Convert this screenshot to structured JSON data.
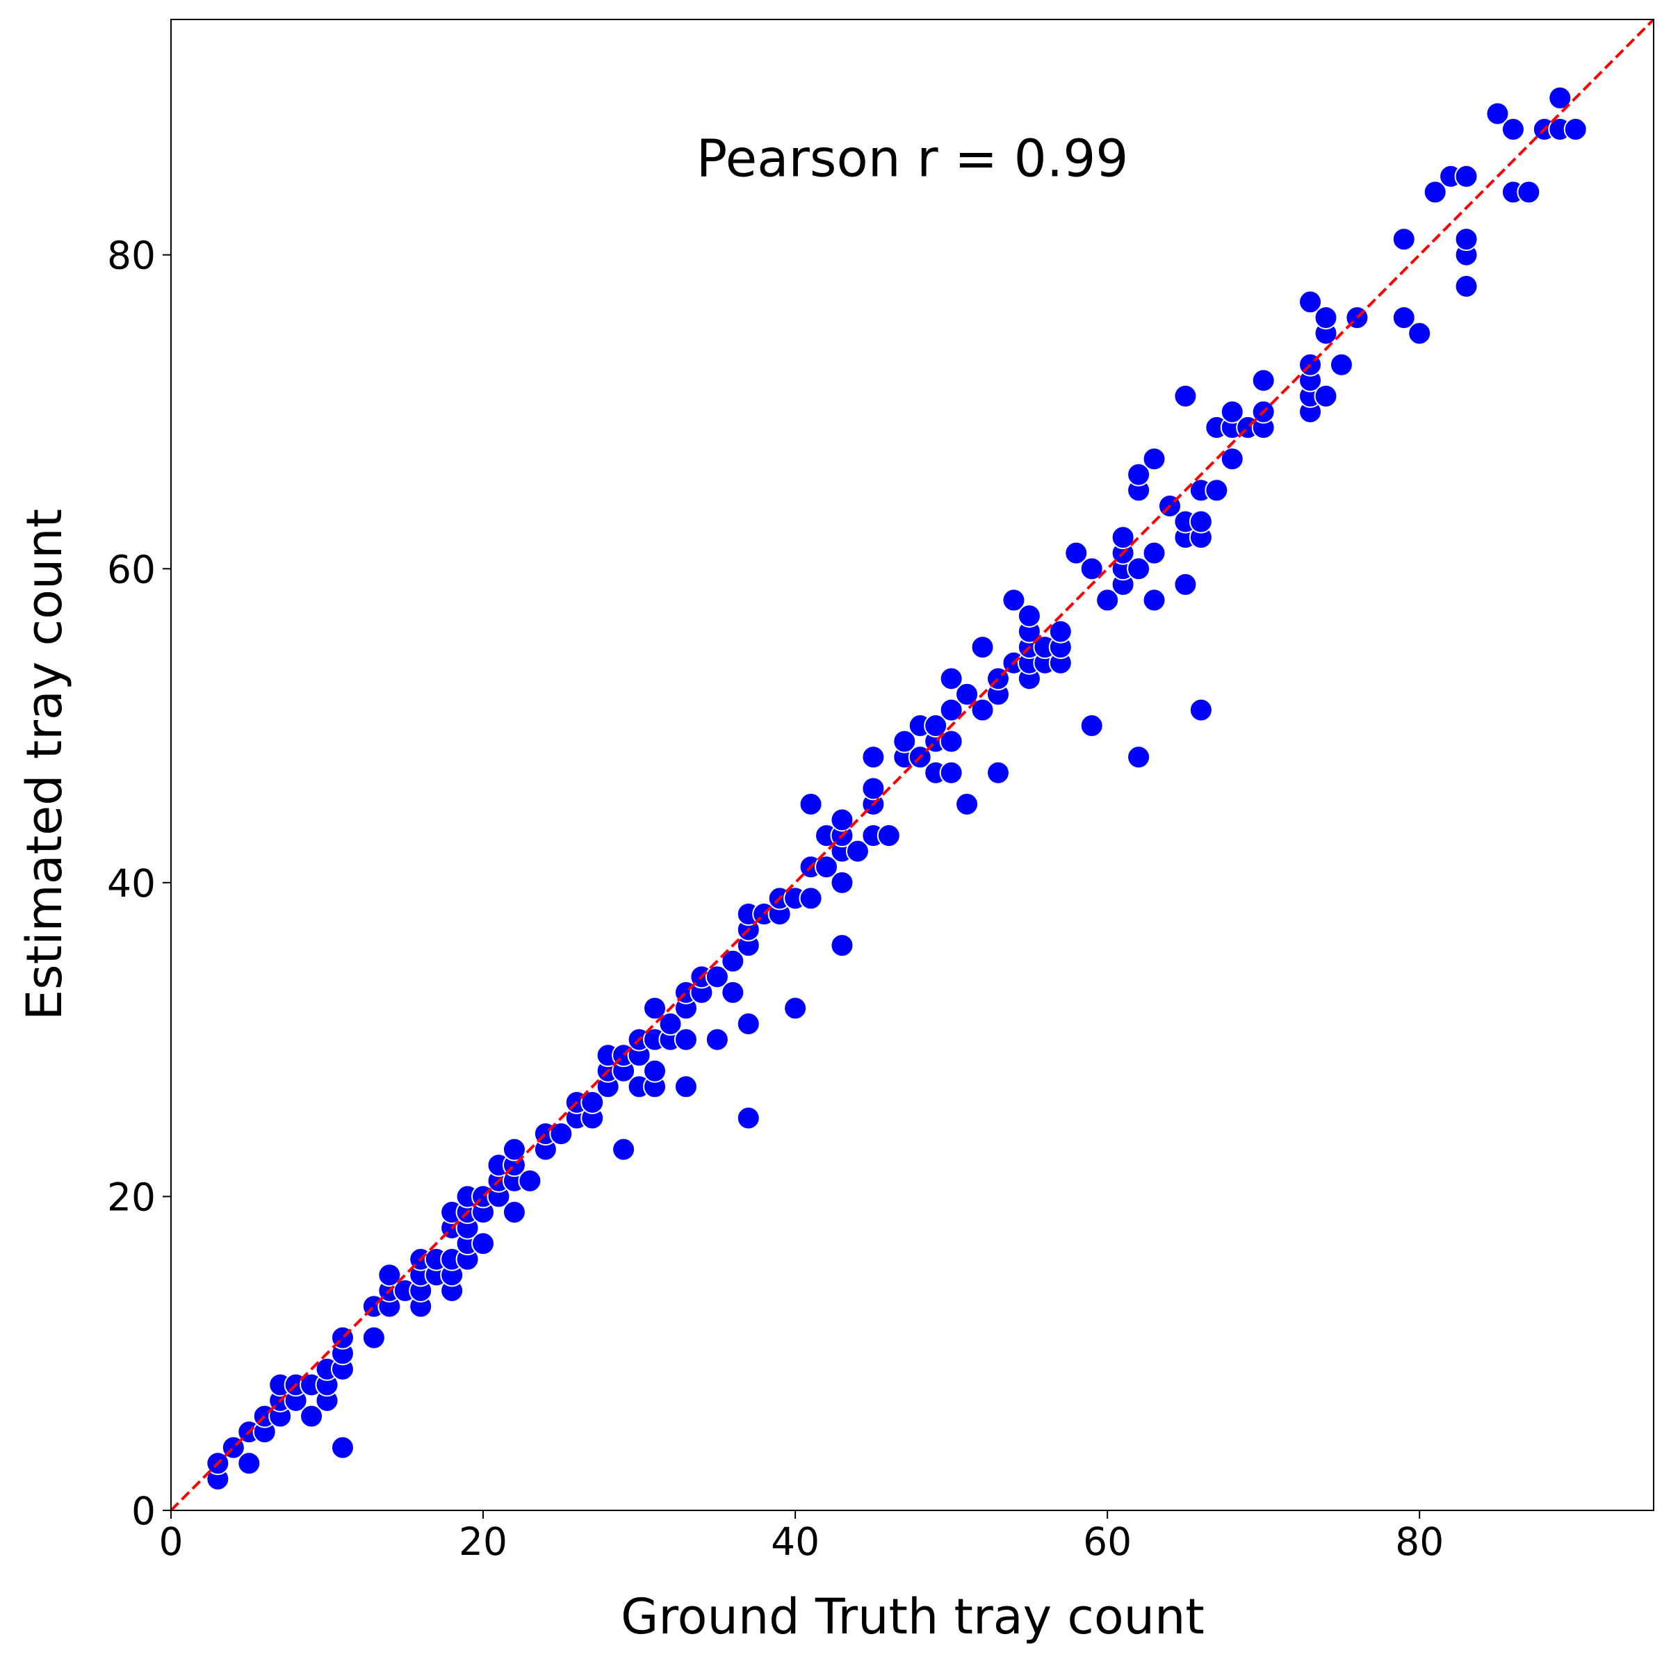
{
  "chart_data": {
    "type": "scatter",
    "annotation": "Pearson r = 0.99",
    "x_label": "Ground Truth tray count",
    "y_label": "Estimated tray count",
    "color": "#0000ff",
    "edge_color": "#ffffff",
    "identity_line": {
      "color": "#ff0000",
      "style": "dashed"
    },
    "xlim": [
      0,
      95
    ],
    "ylim": [
      0,
      95
    ],
    "xticks": [
      0,
      20,
      40,
      60,
      80
    ],
    "yticks": [
      0,
      20,
      40,
      60,
      80
    ],
    "x": [
      3,
      3,
      4,
      5,
      5,
      6,
      6,
      7,
      7,
      7,
      8,
      8,
      9,
      9,
      10,
      10,
      10,
      11,
      11,
      11,
      11,
      13,
      13,
      14,
      14,
      14,
      15,
      16,
      16,
      16,
      16,
      17,
      17,
      18,
      18,
      18,
      18,
      18,
      19,
      19,
      19,
      19,
      19,
      20,
      20,
      20,
      21,
      21,
      21,
      22,
      22,
      22,
      22,
      23,
      24,
      24,
      25,
      26,
      26,
      27,
      27,
      28,
      28,
      28,
      29,
      29,
      29,
      30,
      30,
      30,
      31,
      31,
      31,
      31,
      32,
      32,
      33,
      33,
      33,
      33,
      34,
      34,
      35,
      35,
      36,
      36,
      37,
      37,
      37,
      37,
      37,
      38,
      39,
      39,
      40,
      40,
      41,
      41,
      41,
      42,
      42,
      43,
      43,
      43,
      43,
      43,
      44,
      45,
      45,
      45,
      45,
      46,
      47,
      47,
      48,
      48,
      49,
      49,
      49,
      50,
      50,
      50,
      50,
      51,
      51,
      52,
      52,
      53,
      53,
      53,
      54,
      54,
      55,
      55,
      55,
      55,
      55,
      56,
      56,
      57,
      57,
      57,
      58,
      59,
      59,
      60,
      61,
      61,
      61,
      61,
      62,
      62,
      62,
      62,
      63,
      63,
      63,
      64,
      65,
      65,
      65,
      65,
      66,
      66,
      66,
      66,
      67,
      67,
      68,
      68,
      68,
      69,
      70,
      70,
      70,
      73,
      73,
      73,
      73,
      73,
      74,
      74,
      74,
      75,
      76,
      79,
      79,
      80,
      81,
      82,
      83,
      83,
      83,
      83,
      85,
      86,
      86,
      87,
      88,
      89,
      89,
      90
    ],
    "y": [
      2,
      3,
      4,
      3,
      5,
      5,
      6,
      6,
      7,
      8,
      7,
      8,
      6,
      8,
      7,
      8,
      9,
      4,
      9,
      10,
      11,
      11,
      13,
      13,
      14,
      15,
      14,
      13,
      14,
      15,
      16,
      15,
      16,
      14,
      15,
      16,
      18,
      19,
      16,
      17,
      18,
      19,
      20,
      17,
      19,
      20,
      20,
      21,
      22,
      19,
      21,
      22,
      23,
      21,
      23,
      24,
      24,
      25,
      26,
      25,
      26,
      27,
      28,
      29,
      23,
      28,
      29,
      27,
      29,
      30,
      27,
      28,
      30,
      32,
      30,
      31,
      27,
      30,
      32,
      33,
      33,
      34,
      30,
      34,
      33,
      35,
      25,
      31,
      36,
      37,
      38,
      38,
      38,
      39,
      32,
      39,
      39,
      41,
      45,
      41,
      43,
      36,
      40,
      42,
      43,
      44,
      42,
      43,
      45,
      46,
      48,
      43,
      48,
      49,
      48,
      50,
      47,
      49,
      50,
      47,
      49,
      51,
      53,
      45,
      52,
      51,
      55,
      47,
      52,
      53,
      54,
      58,
      53,
      54,
      55,
      56,
      57,
      54,
      55,
      54,
      55,
      56,
      61,
      50,
      60,
      58,
      59,
      60,
      61,
      62,
      48,
      60,
      65,
      66,
      58,
      61,
      67,
      64,
      59,
      62,
      63,
      71,
      51,
      62,
      63,
      65,
      65,
      69,
      67,
      69,
      70,
      69,
      69,
      70,
      72,
      70,
      71,
      72,
      73,
      77,
      71,
      75,
      76,
      73,
      76,
      76,
      81,
      75,
      84,
      85,
      78,
      80,
      81,
      85,
      89,
      84,
      88,
      84,
      88,
      88,
      90,
      88
    ]
  }
}
